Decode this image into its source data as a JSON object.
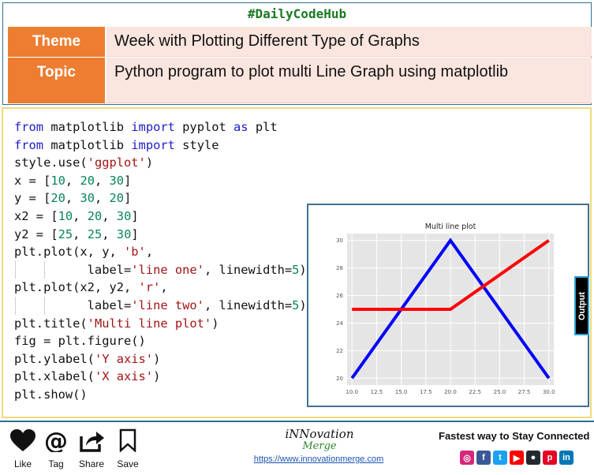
{
  "header": {
    "hashtag": "#DailyCodeHub",
    "theme_label": "Theme",
    "theme_value": "Week with Plotting Different Type of Graphs",
    "topic_label": "Topic",
    "topic_value": "Python program to plot multi Line Graph using matplotlib"
  },
  "code_lines": [
    "from matplotlib import pyplot as plt",
    "from matplotlib import style",
    "style.use('ggplot')",
    "x = [10, 20, 30]",
    "y = [20, 30, 20]",
    "x2 = [10, 20, 30]",
    "y2 = [25, 25, 30]",
    "plt.plot(x, y, 'b',",
    "          label='line one', linewidth=5)",
    "plt.plot(x2, y2, 'r',",
    "          label='line two', linewidth=5)",
    "plt.title('Multi line plot')",
    "fig = plt.figure()",
    "plt.ylabel('Y axis')",
    "plt.xlabel('X axis')",
    "plt.show()"
  ],
  "output_tab_label": "Output",
  "chart_data": {
    "type": "line",
    "title": "Multi line plot",
    "xlabel": "",
    "ylabel": "",
    "xlim": [
      9.5,
      30.5
    ],
    "ylim": [
      19.5,
      30.5
    ],
    "x_ticks": [
      "10.0",
      "12.5",
      "15.0",
      "17.5",
      "20.0",
      "22.5",
      "25.0",
      "27.5",
      "30.0"
    ],
    "y_ticks": [
      "20",
      "22",
      "24",
      "26",
      "28",
      "30"
    ],
    "grid": true,
    "style": "ggplot",
    "series": [
      {
        "x": [
          10,
          20,
          30
        ],
        "y": [
          20,
          30,
          20
        ],
        "color": "#0000ff"
      },
      {
        "x": [
          10,
          20,
          30
        ],
        "y": [
          25,
          25,
          30
        ],
        "color": "#ff0000"
      }
    ]
  },
  "footer": {
    "actions": [
      "Like",
      "Tag",
      "Share",
      "Save"
    ],
    "brand_name": "iNNovation",
    "brand_sub": "Merge",
    "brand_url": "https://www.innovationmerge.com",
    "connect_text": "Fastest way to Stay Connected",
    "socials": [
      {
        "icon": "instagram-icon",
        "glyph": "◎",
        "color": "#d6287a"
      },
      {
        "icon": "facebook-icon",
        "glyph": "f",
        "color": "#3b5998"
      },
      {
        "icon": "twitter-icon",
        "glyph": "t",
        "color": "#1da1f2"
      },
      {
        "icon": "youtube-icon",
        "glyph": "▶",
        "color": "#ff0000"
      },
      {
        "icon": "github-icon",
        "glyph": "●",
        "color": "#24292e"
      },
      {
        "icon": "pinterest-icon",
        "glyph": "p",
        "color": "#e60023"
      },
      {
        "icon": "linkedin-icon",
        "glyph": "in",
        "color": "#0077b5"
      }
    ]
  }
}
